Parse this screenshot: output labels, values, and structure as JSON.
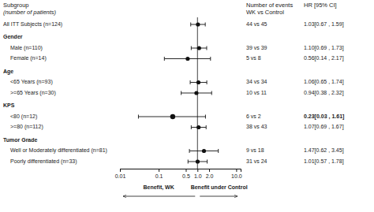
{
  "chart_data": {
    "type": "forest",
    "log": "x",
    "color": "#111111",
    "xlim": [
      0.01,
      13.0
    ],
    "xticks": [
      {
        "value": 0.01,
        "label": "0.01"
      },
      0.1,
      0.5,
      {
        "value": 1.0,
        "label": "1.0"
      },
      {
        "value": 2.0,
        "label": "2.0"
      },
      {
        "value": 10.0,
        "label": "10.0"
      }
    ],
    "ref_line": 1.0,
    "categories": [
      "All ITT Subjects (n=124)",
      "Gender",
      "Male (n=110)",
      "Female (n=14)",
      "Age",
      "<65 Years (n=93)",
      ">=65 Years (n=30)",
      "KPS",
      "<80 (n=12)",
      ">=80 (n=112)",
      "Tumor Grade",
      "Well or Moderately differentiated (n=81)",
      "Poorly differentiated (n=33)"
    ],
    "is_header": [
      false,
      true,
      false,
      false,
      true,
      false,
      false,
      true,
      false,
      false,
      true,
      false,
      false
    ],
    "indent": [
      false,
      false,
      true,
      true,
      false,
      true,
      true,
      false,
      true,
      true,
      false,
      true,
      true
    ],
    "highlight": [
      false,
      false,
      false,
      false,
      false,
      false,
      false,
      false,
      true,
      false,
      false,
      false,
      false
    ],
    "values": [
      1.03,
      null,
      1.1,
      0.56,
      null,
      1.06,
      0.94,
      null,
      0.23,
      1.07,
      null,
      1.47,
      1.01
    ],
    "ci_low": [
      0.67,
      null,
      0.69,
      0.14,
      null,
      0.65,
      0.38,
      null,
      0.03,
      0.69,
      null,
      0.62,
      0.57
    ],
    "ci_high": [
      1.59,
      null,
      1.73,
      2.17,
      null,
      1.74,
      2.32,
      null,
      1.61,
      1.67,
      null,
      3.45,
      1.78
    ],
    "value_labels": [
      "1.03[0.67 , 1.59]",
      null,
      "1.10[0.69 , 1.73]",
      "0.56[0.14 , 2.17]",
      null,
      "1.06[0.65 , 1.74]",
      "0.94[0.38 , 2.32]",
      null,
      "0.23[0.03 , 1.61]",
      "1.07[0.69 , 1.67]",
      null,
      "1.47[0.62 , 3.45]",
      "1.01[0.57 , 1.78]"
    ],
    "events": [
      "44 vs 45",
      null,
      "39 vs 39",
      "5 vs 8",
      null,
      "34 vs 34",
      "10 vs 11",
      null,
      "6 vs 2",
      "38 vs 43",
      null,
      "9 vs 18",
      "31 vs 24"
    ],
    "column_headers": {
      "subgroup": [
        "Subgroup",
        "(number of patients)"
      ],
      "events": [
        "Number of events",
        "WK vs Control"
      ],
      "hr": [
        "HR [95% CI]"
      ]
    },
    "annotations": [
      "Benefit, WK",
      "Benefit under Control"
    ]
  }
}
